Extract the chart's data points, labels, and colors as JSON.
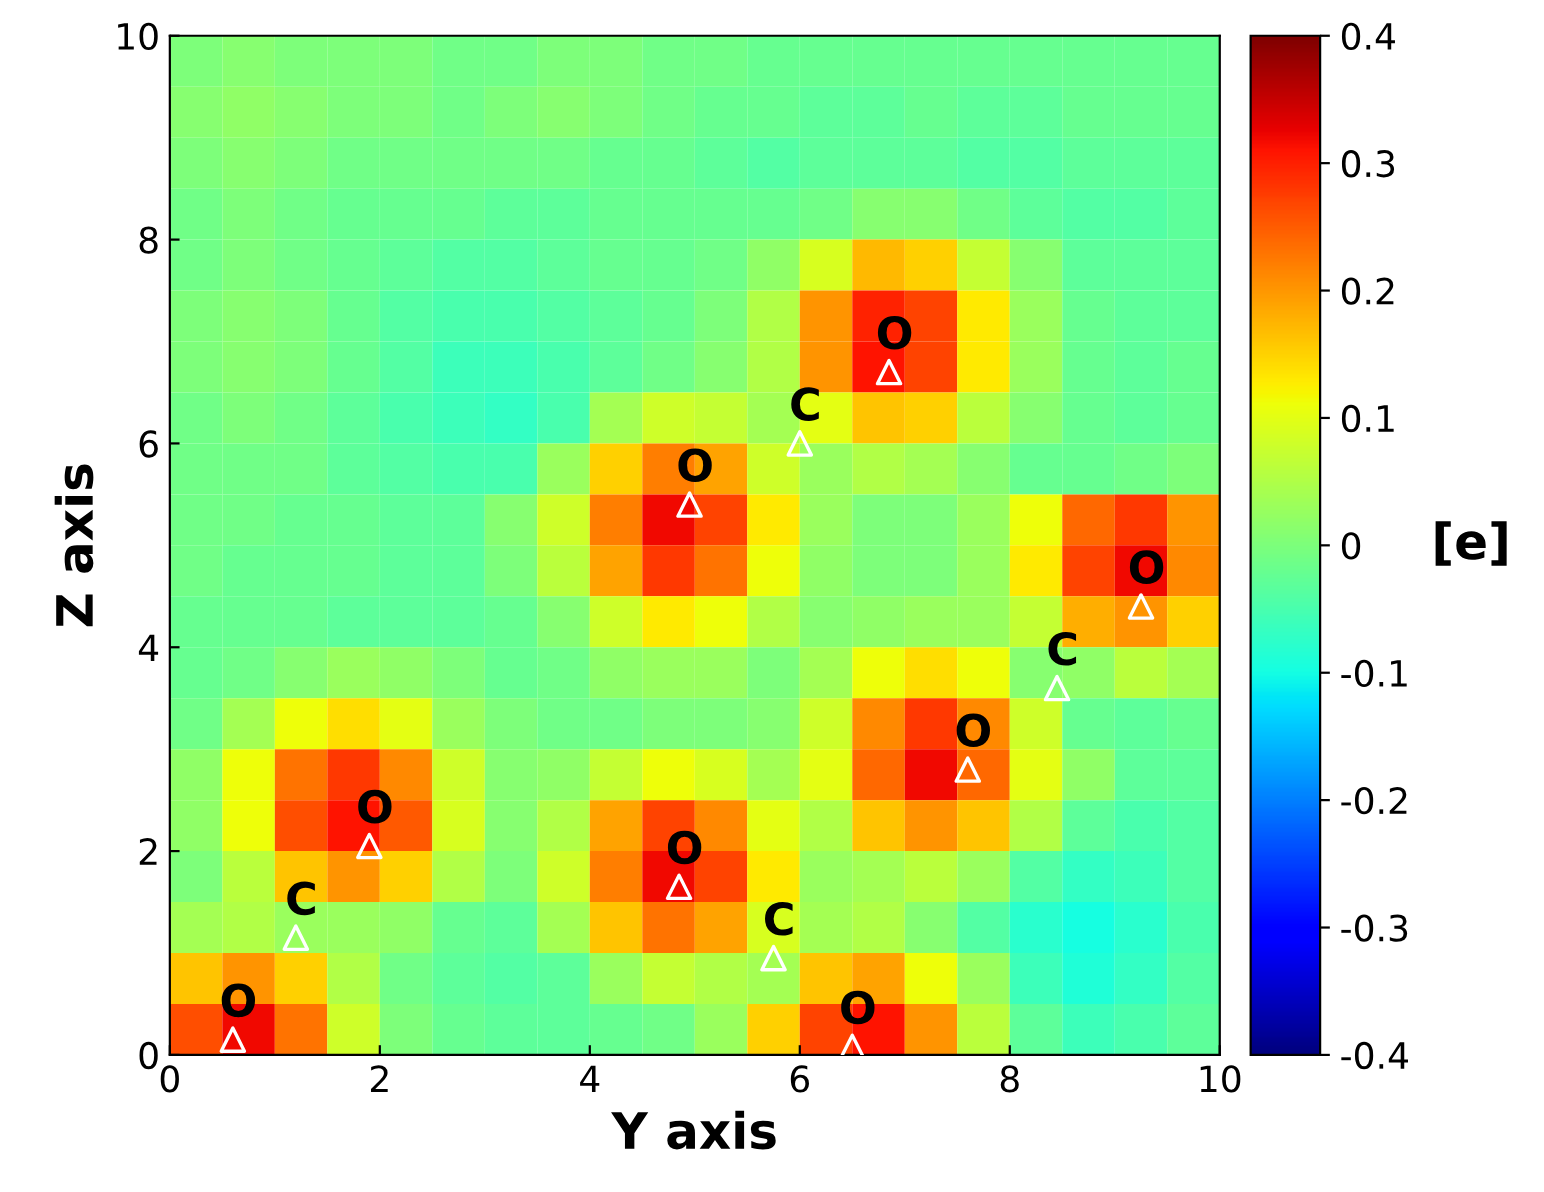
{
  "chart_data": {
    "type": "heatmap",
    "xlabel": "Y axis",
    "ylabel": "Z axis",
    "clabel": "[e]",
    "xlim": [
      0,
      10
    ],
    "ylim": [
      0,
      10
    ],
    "xticks": [
      0,
      2,
      4,
      6,
      8,
      10
    ],
    "yticks": [
      0,
      2,
      4,
      6,
      8,
      10
    ],
    "clim": [
      -0.4,
      0.4
    ],
    "cticks": [
      -0.4,
      -0.3,
      -0.2,
      -0.1,
      0,
      0.1,
      0.2,
      0.3,
      0.4
    ],
    "cells": [
      [
        0,
        0.01,
        0,
        0,
        0,
        -0.01,
        -0.01,
        0,
        0,
        -0.01,
        -0.01,
        -0.02,
        -0.02,
        -0.02,
        -0.02,
        -0.02,
        -0.02,
        -0.02,
        -0.02,
        -0.02
      ],
      [
        0.01,
        0.02,
        0.01,
        0,
        0,
        -0.01,
        0,
        0.01,
        0,
        -0.01,
        -0.02,
        -0.02,
        -0.03,
        -0.03,
        -0.02,
        -0.03,
        -0.03,
        -0.02,
        -0.02,
        -0.02
      ],
      [
        0,
        0.01,
        0,
        -0.01,
        -0.01,
        -0.01,
        -0.01,
        -0.01,
        -0.02,
        -0.02,
        -0.03,
        -0.04,
        -0.03,
        -0.03,
        -0.03,
        -0.04,
        -0.04,
        -0.03,
        -0.03,
        -0.03
      ],
      [
        -0.01,
        0,
        -0.01,
        -0.02,
        -0.02,
        -0.02,
        -0.03,
        -0.03,
        -0.02,
        -0.02,
        -0.02,
        -0.02,
        -0.01,
        0.01,
        0.01,
        -0.01,
        -0.03,
        -0.04,
        -0.04,
        -0.03
      ],
      [
        -0.01,
        0,
        -0.01,
        -0.02,
        -0.03,
        -0.04,
        -0.04,
        -0.03,
        -0.02,
        -0.02,
        -0.01,
        0.02,
        0.09,
        0.17,
        0.15,
        0.07,
        0.01,
        -0.03,
        -0.03,
        -0.03
      ],
      [
        0,
        0.01,
        0,
        -0.02,
        -0.04,
        -0.05,
        -0.05,
        -0.04,
        -0.03,
        -0.02,
        0,
        0.05,
        0.2,
        0.3,
        0.27,
        0.13,
        0.03,
        -0.02,
        -0.03,
        -0.03
      ],
      [
        0,
        0.01,
        0,
        -0.02,
        -0.04,
        -0.06,
        -0.06,
        -0.05,
        -0.03,
        -0.01,
        0.01,
        0.05,
        0.2,
        0.31,
        0.27,
        0.13,
        0.03,
        -0.02,
        -0.03,
        -0.02
      ],
      [
        -0.01,
        0,
        -0.01,
        -0.03,
        -0.05,
        -0.06,
        -0.07,
        -0.05,
        0.04,
        0.08,
        0.07,
        0.04,
        0.1,
        0.16,
        0.15,
        0.06,
        0.01,
        -0.02,
        -0.03,
        -0.02
      ],
      [
        -0.01,
        -0.01,
        -0.01,
        -0.03,
        -0.04,
        -0.05,
        -0.05,
        0.03,
        0.15,
        0.22,
        0.19,
        0.08,
        0.03,
        0.05,
        0.04,
        0.01,
        -0.02,
        -0.02,
        -0.01,
        0
      ],
      [
        -0.01,
        -0.01,
        -0.02,
        -0.02,
        -0.03,
        -0.03,
        0.01,
        0.08,
        0.22,
        0.32,
        0.27,
        0.13,
        0.03,
        0,
        0,
        0.03,
        0.11,
        0.24,
        0.28,
        0.2
      ],
      [
        -0.01,
        -0.02,
        -0.02,
        -0.02,
        -0.03,
        -0.03,
        0,
        0.06,
        0.19,
        0.28,
        0.23,
        0.11,
        0.02,
        0,
        0,
        0.03,
        0.13,
        0.27,
        0.32,
        0.21
      ],
      [
        -0.02,
        -0.02,
        -0.02,
        -0.03,
        -0.03,
        -0.03,
        -0.02,
        0.01,
        0.08,
        0.13,
        0.11,
        0.05,
        0.01,
        0.02,
        0.03,
        0.03,
        0.07,
        0.18,
        0.2,
        0.15
      ],
      [
        -0.02,
        -0.01,
        0.01,
        0.03,
        0.02,
        0,
        -0.02,
        -0.01,
        0.02,
        0.03,
        0.03,
        0,
        0.04,
        0.11,
        0.14,
        0.11,
        0.01,
        0.02,
        0.06,
        0.04
      ],
      [
        -0.01,
        0.04,
        0.11,
        0.14,
        0.1,
        0.03,
        0,
        -0.01,
        -0.01,
        0,
        0,
        0.01,
        0.08,
        0.21,
        0.28,
        0.21,
        0.08,
        -0.02,
        -0.03,
        -0.02
      ],
      [
        0.02,
        0.11,
        0.23,
        0.28,
        0.21,
        0.08,
        0.01,
        0.02,
        0.07,
        0.11,
        0.09,
        0.04,
        0.1,
        0.24,
        0.32,
        0.24,
        0.1,
        0.02,
        -0.03,
        -0.03
      ],
      [
        0.02,
        0.11,
        0.26,
        0.31,
        0.25,
        0.09,
        0.01,
        0.05,
        0.19,
        0.27,
        0.21,
        0.1,
        0.05,
        0.16,
        0.2,
        0.16,
        0.05,
        -0.03,
        -0.05,
        -0.04
      ],
      [
        0,
        0.06,
        0.16,
        0.2,
        0.15,
        0.05,
        0,
        0.08,
        0.22,
        0.32,
        0.27,
        0.13,
        0.03,
        0.04,
        0.06,
        0.03,
        -0.04,
        -0.07,
        -0.06,
        -0.04
      ],
      [
        0.04,
        0.05,
        0.03,
        0.03,
        0.02,
        -0.02,
        -0.03,
        0.04,
        0.16,
        0.23,
        0.19,
        0.09,
        0.04,
        0.05,
        0.01,
        -0.04,
        -0.08,
        -0.1,
        -0.08,
        -0.05
      ],
      [
        0.16,
        0.2,
        0.15,
        0.05,
        -0.01,
        -0.03,
        -0.04,
        -0.03,
        0.03,
        0.07,
        0.05,
        0.04,
        0.16,
        0.19,
        0.11,
        0.03,
        -0.06,
        -0.09,
        -0.07,
        -0.04
      ],
      [
        0.26,
        0.32,
        0.23,
        0.08,
        0,
        -0.02,
        -0.03,
        -0.03,
        -0.02,
        -0.01,
        0.03,
        0.15,
        0.27,
        0.31,
        0.2,
        0.06,
        -0.03,
        -0.06,
        -0.05,
        -0.03
      ]
    ],
    "series": [
      {
        "type": "scatter",
        "color": "#ffffff",
        "marker": "triangle",
        "x": [
          6.85,
          4.95,
          9.25,
          7.6,
          1.9,
          4.85,
          0.6,
          6.5,
          6.0,
          8.45,
          1.2,
          5.75
        ],
        "values": [
          6.7,
          5.4,
          4.4,
          2.8,
          2.05,
          1.65,
          0.15,
          0.08,
          6.0,
          3.6,
          1.15,
          0.95
        ]
      }
    ],
    "annotations": [
      {
        "text": "O",
        "x": 6.85,
        "y": 6.7
      },
      {
        "text": "O",
        "x": 4.95,
        "y": 5.4
      },
      {
        "text": "O",
        "x": 9.25,
        "y": 4.4
      },
      {
        "text": "O",
        "x": 7.6,
        "y": 2.8
      },
      {
        "text": "O",
        "x": 1.9,
        "y": 2.05
      },
      {
        "text": "O",
        "x": 4.85,
        "y": 1.65
      },
      {
        "text": "O",
        "x": 0.6,
        "y": 0.15
      },
      {
        "text": "O",
        "x": 6.5,
        "y": 0.08
      },
      {
        "text": "C",
        "x": 6.0,
        "y": 6.0
      },
      {
        "text": "C",
        "x": 8.45,
        "y": 3.6
      },
      {
        "text": "C",
        "x": 1.2,
        "y": 1.15
      },
      {
        "text": "C",
        "x": 5.75,
        "y": 0.95
      }
    ]
  }
}
